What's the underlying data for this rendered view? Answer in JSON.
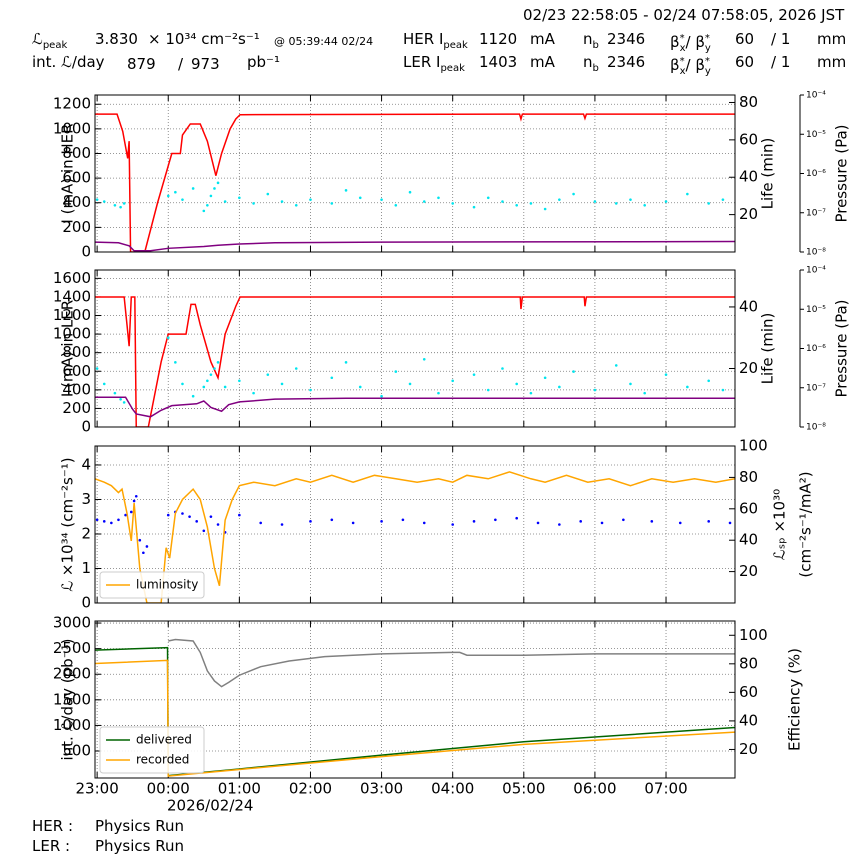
{
  "header": {
    "timestamp": "02/23 22:58:05 - 02/24 07:58:05, 2026 JST",
    "lumi_peak_symbol": "ℒ",
    "lumi_peak_sub": "peak",
    "lumi_peak_value": "3.830",
    "lumi_peak_unit": "× 10³⁴ cm⁻²s⁻¹",
    "lumi_peak_time": "@ 05:39:44 02/24",
    "int_lumi_label": "int. ℒ/day",
    "int_lumi_recorded": "879",
    "int_lumi_sep": "/",
    "int_lumi_delivered": "973",
    "int_lumi_unit": "pb⁻¹",
    "rings": [
      {
        "name": "HER I",
        "sub": "peak",
        "current": "1120",
        "current_unit": "mA",
        "nb_label": "n",
        "nb_sub": "b",
        "nb": "2346",
        "beta": "β",
        "beta_sup": "*",
        "beta_x_sub": "x",
        "beta_sep": "/ β",
        "beta_sup2": "*",
        "beta_y_sub": "y",
        "beta_x": "60",
        "beta_y": "/ 1",
        "beta_unit": "mm"
      },
      {
        "name": "LER I",
        "sub": "peak",
        "current": "1403",
        "current_unit": "mA",
        "nb_label": "n",
        "nb_sub": "b",
        "nb": "2346",
        "beta": "β",
        "beta_sup": "*",
        "beta_x_sub": "x",
        "beta_sep": "/ β",
        "beta_sup2": "*",
        "beta_y_sub": "y",
        "beta_x": "60",
        "beta_y": "/ 1",
        "beta_unit": "mm"
      }
    ]
  },
  "status": [
    {
      "ring": "HER :",
      "mode": "Physics Run"
    },
    {
      "ring": "LER :",
      "mode": "Physics Run"
    }
  ],
  "chart_data": [
    {
      "type": "line",
      "ylabel": "I (mA) in HER",
      "y2label": "Life (min)",
      "y3label": "Pressure (Pa)",
      "grid": true,
      "xlim": [
        -0.03,
        8.97
      ],
      "ylim": [
        0,
        1275
      ],
      "yticks": [
        0,
        200,
        400,
        600,
        800,
        1000,
        1200
      ],
      "y2lim": [
        0,
        84
      ],
      "y2ticks": [
        20,
        40,
        60,
        80
      ],
      "y3lim": [
        1e-08,
        0.0001
      ],
      "y3log": true,
      "y3ticks": [
        {
          "value": 1e-08,
          "label": "10⁻⁸"
        },
        {
          "value": 1e-07,
          "label": "10⁻⁷"
        },
        {
          "value": 1e-06,
          "label": "10⁻⁶"
        },
        {
          "value": 1e-05,
          "label": "10⁻⁵"
        },
        {
          "value": 0.0001,
          "label": "10⁻⁴"
        }
      ],
      "series": [
        {
          "type": "line",
          "color": "#ff0000",
          "x": [
            -0.03,
            0.28,
            0.36,
            0.43,
            0.45,
            0.47,
            0.67,
            0.85,
            1.05,
            1.17,
            1.2,
            1.31,
            1.45,
            1.55,
            1.67,
            1.75,
            1.87,
            1.95,
            2.01,
            5.94,
            5.96,
            5.98,
            6.84,
            6.86,
            6.88,
            8.97
          ],
          "values": [
            1120,
            1120,
            980,
            760,
            900,
            0,
            0,
            400,
            800,
            800,
            950,
            1040,
            1040,
            900,
            620,
            800,
            1000,
            1080,
            1115,
            1120,
            1080,
            1120,
            1120,
            1085,
            1120,
            1120
          ]
        },
        {
          "type": "line",
          "color": "#800080",
          "x": [
            -0.03,
            0.3,
            0.45,
            0.52,
            0.75,
            1.0,
            1.5,
            1.7,
            2.0,
            2.5,
            4.0,
            8.97
          ],
          "values": [
            80,
            75,
            50,
            10,
            10,
            30,
            45,
            55,
            65,
            75,
            80,
            85
          ]
        },
        {
          "type": "scatter",
          "color": "#00e5ee",
          "axis": "y2",
          "x": [
            0.0,
            0.1,
            0.25,
            0.33,
            0.38,
            1.0,
            1.1,
            1.2,
            1.35,
            1.5,
            1.55,
            1.6,
            1.65,
            1.7,
            1.8,
            2.0,
            2.2,
            2.4,
            2.6,
            2.8,
            3.0,
            3.3,
            3.5,
            3.7,
            4.0,
            4.2,
            4.4,
            4.6,
            4.8,
            5.0,
            5.3,
            5.5,
            5.7,
            5.9,
            6.1,
            6.3,
            6.5,
            6.7,
            7.0,
            7.3,
            7.5,
            7.7,
            8.0,
            8.3,
            8.6,
            8.8
          ],
          "values": [
            28,
            27,
            25,
            24,
            26,
            30,
            32,
            28,
            34,
            22,
            25,
            30,
            34,
            37,
            27,
            29,
            26,
            31,
            27,
            25,
            28,
            26,
            33,
            29,
            28,
            25,
            32,
            27,
            29,
            26,
            24,
            29,
            27,
            25,
            26,
            23,
            28,
            31,
            27,
            26,
            28,
            25,
            27,
            31,
            26,
            28
          ]
        }
      ]
    },
    {
      "type": "line",
      "ylabel": "I (mA) in LER",
      "y2label": "Life (min)",
      "y3label": "Pressure (Pa)",
      "grid": true,
      "xlim": [
        -0.03,
        8.97
      ],
      "ylim": [
        0,
        1690
      ],
      "yticks": [
        0,
        200,
        400,
        600,
        800,
        1000,
        1200,
        1400,
        1600
      ],
      "y2lim": [
        1,
        52
      ],
      "y2ticks": [
        20,
        40
      ],
      "y3lim": [
        1e-08,
        0.0001
      ],
      "y3log": true,
      "y3ticks": [
        {
          "value": 1e-08,
          "label": "10⁻⁸"
        },
        {
          "value": 1e-07,
          "label": "10⁻⁷"
        },
        {
          "value": 1e-06,
          "label": "10⁻⁶"
        },
        {
          "value": 1e-05,
          "label": "10⁻⁵"
        },
        {
          "value": 0.0001,
          "label": "10⁻⁴"
        }
      ],
      "series": [
        {
          "type": "line",
          "color": "#ff0000",
          "x": [
            -0.03,
            0.38,
            0.42,
            0.45,
            0.48,
            0.53,
            0.55,
            0.72,
            0.9,
            1.0,
            1.25,
            1.32,
            1.38,
            1.45,
            1.6,
            1.7,
            1.8,
            1.95,
            2.01,
            5.95,
            5.96,
            5.98,
            6.85,
            6.86,
            6.88,
            8.97
          ],
          "values": [
            1400,
            1400,
            1100,
            870,
            1400,
            1400,
            0,
            0,
            700,
            1000,
            1000,
            1320,
            1320,
            1100,
            700,
            530,
            1000,
            1300,
            1400,
            1400,
            1270,
            1400,
            1400,
            1300,
            1400,
            1400
          ]
        },
        {
          "type": "line",
          "color": "#800080",
          "x": [
            -0.03,
            0.4,
            0.5,
            0.55,
            0.75,
            0.9,
            1.05,
            1.4,
            1.5,
            1.6,
            1.75,
            1.85,
            2.0,
            2.5,
            3.5,
            8.97
          ],
          "values": [
            320,
            320,
            190,
            140,
            110,
            180,
            230,
            250,
            280,
            210,
            170,
            240,
            270,
            300,
            310,
            310
          ]
        },
        {
          "type": "scatter",
          "color": "#00e5ee",
          "axis": "y2",
          "x": [
            0.0,
            0.1,
            0.25,
            0.33,
            0.38,
            1.0,
            1.1,
            1.2,
            1.35,
            1.5,
            1.55,
            1.6,
            1.65,
            1.7,
            1.8,
            2.0,
            2.2,
            2.4,
            2.6,
            2.8,
            3.0,
            3.3,
            3.5,
            3.7,
            4.0,
            4.2,
            4.4,
            4.6,
            4.8,
            5.0,
            5.3,
            5.5,
            5.7,
            5.9,
            6.1,
            6.3,
            6.5,
            6.7,
            7.0,
            7.3,
            7.5,
            7.7,
            8.0,
            8.3,
            8.6,
            8.8
          ],
          "values": [
            20,
            15,
            12,
            10,
            9,
            30,
            22,
            15,
            11,
            14,
            16,
            18,
            20,
            22,
            14,
            16,
            12,
            18,
            15,
            20,
            13,
            17,
            22,
            14,
            11,
            19,
            15,
            23,
            12,
            16,
            18,
            13,
            20,
            15,
            12,
            17,
            14,
            19,
            13,
            21,
            15,
            12,
            18,
            14,
            16,
            13
          ]
        }
      ]
    },
    {
      "type": "line",
      "ylabel": "ℒ ×10³⁴ (cm⁻²s⁻¹)",
      "y2label": [
        "ℒₛₚ ×10³⁰",
        "(cm⁻²s⁻¹/mA²)"
      ],
      "grid": true,
      "legend": "lower left",
      "xlim": [
        -0.03,
        8.97
      ],
      "ylim": [
        0,
        4.55
      ],
      "yticks": [
        0,
        1,
        2,
        3,
        4
      ],
      "y2lim": [
        0,
        100
      ],
      "y2ticks": [
        20,
        40,
        60,
        80,
        100
      ],
      "series": [
        {
          "type": "scatter",
          "color": "#0000ff",
          "axis": "y2",
          "x": [
            0.0,
            0.1,
            0.2,
            0.3,
            0.4,
            0.48,
            0.52,
            0.55,
            0.6,
            0.65,
            0.7,
            1.0,
            1.1,
            1.2,
            1.3,
            1.4,
            1.5,
            1.6,
            1.7,
            1.8,
            2.0,
            2.3,
            2.6,
            3.0,
            3.3,
            3.6,
            4.0,
            4.3,
            4.6,
            5.0,
            5.3,
            5.6,
            5.9,
            6.2,
            6.5,
            6.8,
            7.1,
            7.4,
            7.8,
            8.2,
            8.6,
            8.9
          ],
          "values": [
            53,
            52,
            51,
            53,
            56,
            58,
            65,
            68,
            40,
            32,
            36,
            56,
            58,
            57,
            55,
            52,
            46,
            55,
            50,
            45,
            56,
            51,
            50,
            52,
            53,
            51,
            52,
            53,
            51,
            50,
            52,
            53,
            54,
            51,
            50,
            52,
            51,
            53,
            52,
            51,
            52,
            51
          ]
        },
        {
          "type": "line",
          "name": "luminosity",
          "color": "#ffa500",
          "x": [
            -0.03,
            0.1,
            0.2,
            0.3,
            0.35,
            0.42,
            0.48,
            0.52,
            0.6,
            0.7,
            0.9,
            0.97,
            1.02,
            1.1,
            1.2,
            1.35,
            1.45,
            1.55,
            1.65,
            1.72,
            1.8,
            1.9,
            2.0,
            2.2,
            2.5,
            2.8,
            3.0,
            3.3,
            3.6,
            3.9,
            4.2,
            4.5,
            4.8,
            5.0,
            5.2,
            5.5,
            5.8,
            6.1,
            6.3,
            6.6,
            6.9,
            7.2,
            7.5,
            7.8,
            8.1,
            8.4,
            8.7,
            8.97
          ],
          "values": [
            3.6,
            3.5,
            3.4,
            3.2,
            3.3,
            2.6,
            1.8,
            2.9,
            1.0,
            0.0,
            0.0,
            1.6,
            1.3,
            2.6,
            3.0,
            3.3,
            3.0,
            2.2,
            1.0,
            0.5,
            2.4,
            3.0,
            3.4,
            3.5,
            3.4,
            3.6,
            3.5,
            3.7,
            3.5,
            3.7,
            3.6,
            3.5,
            3.6,
            3.5,
            3.7,
            3.6,
            3.8,
            3.6,
            3.5,
            3.7,
            3.5,
            3.6,
            3.4,
            3.6,
            3.5,
            3.6,
            3.5,
            3.6
          ]
        }
      ]
    },
    {
      "type": "line",
      "ylabel": "int. ℒ/day (pb⁻¹)",
      "y2label": "Efficiency (%)",
      "grid": true,
      "legend": "lower left",
      "xlim": [
        -0.03,
        8.97
      ],
      "ylim": [
        -27,
        3040
      ],
      "yticks": [
        500,
        1000,
        1500,
        2000,
        2500,
        3000
      ],
      "y2lim": [
        0,
        110
      ],
      "y2ticks": [
        20,
        40,
        60,
        80,
        100
      ],
      "xticks": [
        {
          "value": 0,
          "label": "23:00"
        },
        {
          "value": 1,
          "label": "00:00"
        },
        {
          "value": 2,
          "label": "01:00"
        },
        {
          "value": 3,
          "label": "02:00"
        },
        {
          "value": 4,
          "label": "03:00"
        },
        {
          "value": 5,
          "label": "04:00"
        },
        {
          "value": 6,
          "label": "05:00"
        },
        {
          "value": 7,
          "label": "06:00"
        },
        {
          "value": 8,
          "label": "07:00"
        }
      ],
      "x_date_label": "2026/02/24",
      "series": [
        {
          "type": "line",
          "name": "delivered",
          "color": "#006400",
          "x": [
            -0.03,
            0.99,
            1.0,
            2.0,
            4.0,
            6.0,
            8.97
          ],
          "values": [
            2470,
            2520,
            20,
            150,
            420,
            680,
            960
          ]
        },
        {
          "type": "line",
          "name": "recorded",
          "color": "#ffa500",
          "x": [
            -0.03,
            0.99,
            1.0,
            2.0,
            4.0,
            6.0,
            8.97
          ],
          "values": [
            2210,
            2270,
            10,
            140,
            390,
            630,
            870
          ]
        },
        {
          "type": "line",
          "color": "#808080",
          "axis": "y2",
          "x": [
            1.0,
            1.1,
            1.35,
            1.45,
            1.55,
            1.65,
            1.75,
            1.85,
            2.0,
            2.3,
            2.7,
            3.2,
            4.0,
            5.0,
            5.1,
            5.2,
            6.0,
            7.0,
            8.97
          ],
          "values": [
            96,
            97,
            96,
            88,
            75,
            68,
            64,
            67,
            72,
            78,
            82,
            85,
            87,
            88,
            88,
            86,
            86,
            87,
            87
          ]
        }
      ]
    }
  ]
}
